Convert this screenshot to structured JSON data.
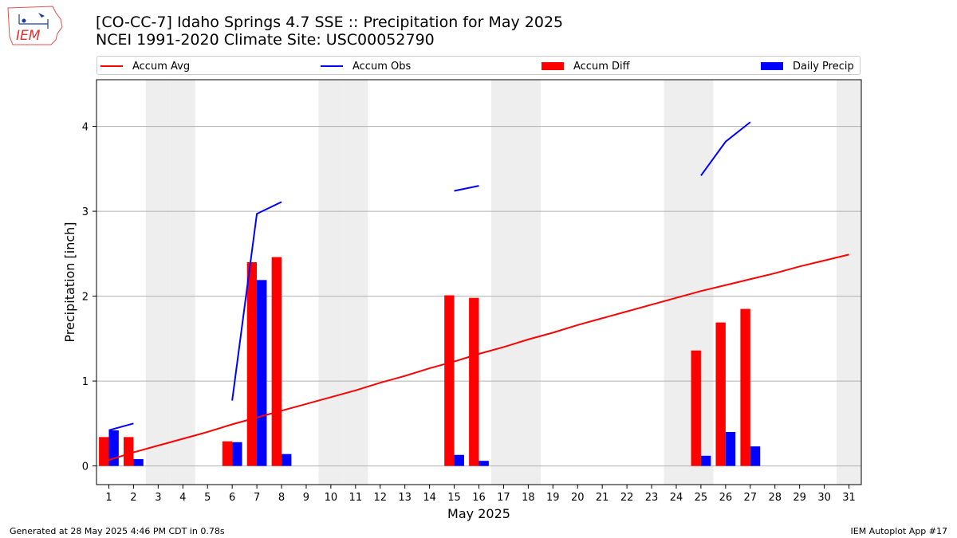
{
  "header": {
    "title_line1": "[CO-CC-7] Idaho Springs 4.7 SSE :: Precipitation for May 2025",
    "title_line2": "NCEI 1991-2020 Climate Site: USC00052790",
    "logo_text": "IEM"
  },
  "footer": {
    "left": "Generated at 28 May 2025 4:46 PM CDT in 0.78s",
    "right": "IEM Autoplot App #17"
  },
  "colors": {
    "accum_avg": "#ff0000",
    "accum_obs": "#0000ff",
    "accum_diff": "#ff0000",
    "daily_precip": "#0000ff",
    "weekend_shade": "#eeeeee",
    "grid": "#b0b0b0"
  },
  "legend": [
    {
      "label": "Accum Avg",
      "kind": "line",
      "color": "#ff0000"
    },
    {
      "label": "Accum Obs",
      "kind": "line",
      "color": "#0000ff"
    },
    {
      "label": "Accum Diff",
      "kind": "box",
      "color": "#ff0000"
    },
    {
      "label": "Daily Precip",
      "kind": "box",
      "color": "#0000ff"
    }
  ],
  "chart_data": {
    "type": "bar",
    "title": "[CO-CC-7] Idaho Springs 4.7 SSE :: Precipitation for May 2025",
    "subtitle": "NCEI 1991-2020 Climate Site: USC00052790",
    "xlabel": "May 2025",
    "ylabel": "Precipitation [inch]",
    "xlim": [
      0.5,
      31.5
    ],
    "ylim": [
      -0.22,
      4.55
    ],
    "yticks": [
      0,
      1,
      2,
      3,
      4
    ],
    "grid": "horizontal",
    "legend_position": "top",
    "days": [
      1,
      2,
      3,
      4,
      5,
      6,
      7,
      8,
      9,
      10,
      11,
      12,
      13,
      14,
      15,
      16,
      17,
      18,
      19,
      20,
      21,
      22,
      23,
      24,
      25,
      26,
      27,
      28,
      29,
      30,
      31
    ],
    "weekend_days": [
      3,
      4,
      10,
      11,
      17,
      18,
      24,
      25,
      31
    ],
    "series": [
      {
        "name": "Accum Avg",
        "kind": "line",
        "x": [
          1,
          2,
          3,
          4,
          5,
          6,
          7,
          8,
          9,
          10,
          11,
          12,
          13,
          14,
          15,
          16,
          17,
          18,
          19,
          20,
          21,
          22,
          23,
          24,
          25,
          26,
          27,
          28,
          29,
          30,
          31
        ],
        "values": [
          0.07,
          0.16,
          0.24,
          0.32,
          0.4,
          0.49,
          0.57,
          0.65,
          0.73,
          0.81,
          0.89,
          0.98,
          1.06,
          1.15,
          1.23,
          1.32,
          1.4,
          1.49,
          1.57,
          1.66,
          1.74,
          1.82,
          1.9,
          1.98,
          2.06,
          2.13,
          2.2,
          2.27,
          2.35,
          2.42,
          2.49
        ]
      },
      {
        "name": "Accum Obs",
        "kind": "line",
        "segments": [
          {
            "x": [
              1,
              2
            ],
            "values": [
              0.42,
              0.5
            ]
          },
          {
            "x": [
              6,
              7,
              8
            ],
            "values": [
              0.77,
              2.97,
              3.11
            ]
          },
          {
            "x": [
              15,
              16
            ],
            "values": [
              3.24,
              3.3
            ]
          },
          {
            "x": [
              25,
              26,
              27
            ],
            "values": [
              3.42,
              3.82,
              4.05
            ]
          }
        ]
      },
      {
        "name": "Accum Diff",
        "kind": "bar",
        "x": [
          1,
          2,
          6,
          7,
          8,
          15,
          16,
          25,
          26,
          27
        ],
        "values": [
          0.34,
          0.34,
          0.29,
          2.4,
          2.46,
          2.01,
          1.98,
          1.36,
          1.69,
          1.85
        ]
      },
      {
        "name": "Daily Precip",
        "kind": "bar",
        "x": [
          1,
          2,
          6,
          7,
          8,
          15,
          16,
          25,
          26,
          27
        ],
        "values": [
          0.42,
          0.08,
          0.28,
          2.19,
          0.14,
          0.13,
          0.06,
          0.12,
          0.4,
          0.23
        ]
      }
    ]
  }
}
